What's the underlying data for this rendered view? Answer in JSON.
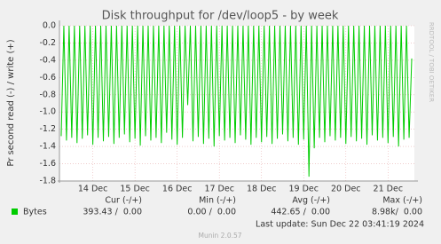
{
  "chart_data": {
    "type": "line",
    "title": "Disk throughput for /dev/loop5 - by week",
    "y_label": "Pr second read (-) / write (+)",
    "side_text": "RRDTOOL / TOBI OETIKER",
    "footer": "Munin 2.0.57",
    "last_update": "Last update: Sun Dec 22 03:41:19 2024",
    "x": [
      6,
      7.5,
      9,
      10.5,
      12,
      13.5,
      15,
      16.5,
      18,
      19.5,
      21,
      22.5,
      24,
      25.5,
      27,
      28.5,
      30,
      31.5,
      33,
      34.5,
      36,
      37.5,
      39,
      40.5,
      42,
      43.5,
      45,
      46.5,
      48,
      49.5,
      51,
      52.5,
      54,
      55.5,
      57,
      58.5,
      60,
      61.5,
      63,
      64.5,
      66,
      67.5,
      69,
      70.5,
      72,
      73.5,
      75,
      76.5,
      78,
      79.5,
      81,
      82.5,
      84,
      85.5,
      87,
      88.5,
      90,
      91.5,
      93,
      94.5,
      96,
      97.5,
      99,
      100.5,
      102,
      103.5,
      105,
      106.5,
      108,
      109.5,
      111,
      112.5,
      114,
      115.5,
      117,
      118.5,
      120,
      121.5,
      123,
      124.5,
      126,
      127.5,
      129,
      130.5,
      132,
      133.5,
      135,
      136.5,
      138,
      139.5,
      141,
      142.5,
      144,
      145.5,
      147,
      148.5,
      150,
      151.5,
      153,
      154.5,
      156,
      157.5,
      159,
      160.5,
      162,
      163.5,
      165,
      166.5,
      168,
      169.5,
      171,
      172.5,
      174,
      175.5,
      177,
      178.5,
      180,
      181.5,
      183,
      184.5,
      186,
      187.5,
      189,
      190.5,
      192,
      193.5,
      195,
      196.5,
      198,
      199.5,
      201,
      202.5,
      204,
      205.5
    ],
    "series": [
      {
        "name": "Bytes",
        "color": "#00cc00",
        "values": [
          -1.28,
          0,
          -1.33,
          0,
          -1.3,
          0,
          -1.36,
          0,
          -1.31,
          0,
          -1.27,
          0,
          -1.38,
          0,
          -1.3,
          0,
          -1.34,
          0,
          -1.29,
          0,
          -1.37,
          0,
          -1.3,
          0,
          -1.26,
          0,
          -1.35,
          0,
          -1.31,
          0,
          -1.39,
          0,
          -1.28,
          0,
          -1.33,
          0,
          -1.3,
          0,
          -1.36,
          0,
          -1.24,
          0,
          -1.32,
          0,
          -1.38,
          0,
          -1.3,
          0,
          -0.92,
          0,
          -1.34,
          0,
          -1.29,
          0,
          -1.37,
          0,
          -1.31,
          0,
          -1.4,
          0,
          -1.28,
          0,
          -1.33,
          0,
          -1.3,
          0,
          -1.36,
          0,
          -1.27,
          0,
          -1.32,
          0,
          -1.38,
          0,
          -1.3,
          0,
          -1.35,
          0,
          -1.29,
          0,
          -1.37,
          0,
          -1.31,
          0,
          -1.26,
          0,
          -1.34,
          0,
          -1.3,
          0,
          -1.38,
          0,
          -1.32,
          0,
          -1.75,
          0,
          -1.42,
          0,
          -1.3,
          0,
          -1.35,
          0,
          -1.28,
          0,
          -1.33,
          0,
          -1.3,
          0,
          -1.37,
          0,
          -1.29,
          0,
          -1.34,
          0,
          -1.31,
          0,
          -1.38,
          0,
          -1.27,
          0,
          -1.33,
          0,
          -1.3,
          0,
          -1.36,
          0,
          -1.29,
          0,
          -1.4,
          0,
          -1.32,
          0,
          -1.3,
          -0.38
        ]
      }
    ],
    "xlim": [
      5,
      207
    ],
    "xticks": [
      {
        "value": 24,
        "label": "14 Dec"
      },
      {
        "value": 48,
        "label": "15 Dec"
      },
      {
        "value": 72,
        "label": "16 Dec"
      },
      {
        "value": 96,
        "label": "17 Dec"
      },
      {
        "value": 120,
        "label": "18 Dec"
      },
      {
        "value": 144,
        "label": "19 Dec"
      },
      {
        "value": 168,
        "label": "20 Dec"
      },
      {
        "value": 192,
        "label": "21 Dec"
      }
    ],
    "ylim": [
      -1.8,
      0
    ],
    "yticks": [
      {
        "value": 0,
        "label": "0.0"
      },
      {
        "value": -0.2,
        "label": "-0.2"
      },
      {
        "value": -0.4,
        "label": "-0.4"
      },
      {
        "value": -0.6,
        "label": "-0.6"
      },
      {
        "value": -0.8,
        "label": "-0.8"
      },
      {
        "value": -1.0,
        "label": "-1.0"
      },
      {
        "value": -1.2,
        "label": "-1.2"
      },
      {
        "value": -1.4,
        "label": "-1.4"
      },
      {
        "value": -1.6,
        "label": "-1.6"
      },
      {
        "value": -1.8,
        "label": "-1.8"
      }
    ],
    "grid": true,
    "summary": {
      "headers": [
        "Cur (-/+)",
        "Min (-/+)",
        "Avg (-/+)",
        "Max (-/+)"
      ],
      "row": [
        "393.43 /  0.00",
        "0.00 /  0.00",
        "442.65 /  0.00",
        "8.98k/  0.00"
      ]
    }
  }
}
